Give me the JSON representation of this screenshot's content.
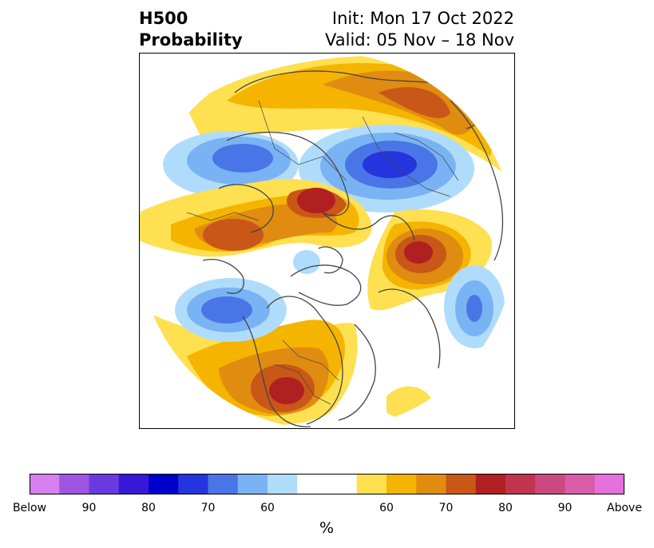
{
  "title": {
    "variable": "H500",
    "product": "Probability",
    "init": "Init: Mon 17 Oct 2022",
    "valid": "Valid: 05 Nov – 18 Nov"
  },
  "colorbar": {
    "unit": "%",
    "colors": [
      "#d580ee",
      "#9d55e2",
      "#6a3ae0",
      "#3818d8",
      "#0000cc",
      "#2535dd",
      "#4a75e6",
      "#7ab3f3",
      "#b0dcfc",
      "#ffffff",
      "#ffffff",
      "#fee050",
      "#f4b400",
      "#e08c10",
      "#c85718",
      "#b02020",
      "#c03450",
      "#cc4880",
      "#d85ca8",
      "#e670dc"
    ],
    "tick_labels": [
      "Below",
      "90",
      "80",
      "70",
      "60",
      "60",
      "70",
      "80",
      "90",
      "Above"
    ]
  },
  "map": {
    "projection": "north-polar-stereographic",
    "colors": {
      "border": "#444444",
      "frame": "#000000"
    }
  }
}
